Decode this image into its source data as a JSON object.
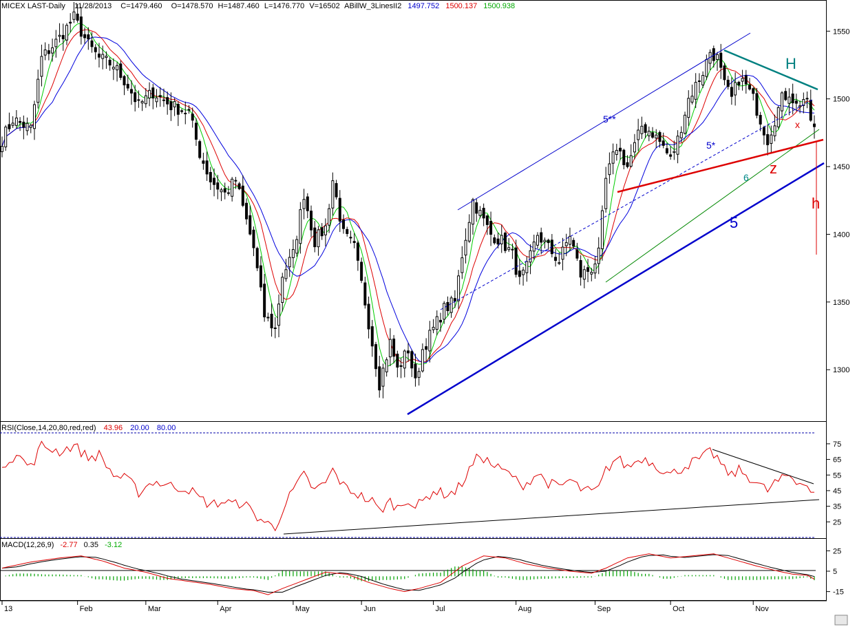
{
  "header": {
    "symbol": "MICEX LAST-Daily",
    "date": "11/28/2013",
    "close": "C=1479.460",
    "open": "O=1478.570",
    "high": "H=1487.460",
    "low": "L=1476.770",
    "volume": "V=16502",
    "indicator": "ABillW_3LinesII2",
    "ind_v1": "1497.752",
    "ind_v2": "1500.137",
    "ind_v3": "1500.938"
  },
  "rsi_header": {
    "label": "RSI(Close,14,20,80,red,red)",
    "value": "43.96",
    "low": "20.00",
    "high": "80.00"
  },
  "macd_header": {
    "label": "MACD(12,26,9)",
    "v1": "-2.77",
    "v2": "0.35",
    "v3": "-3.12"
  },
  "annotations": {
    "h_upper": "H",
    "h_lower": "h",
    "z": "z",
    "x": "x",
    "w5": "5",
    "w5ss": "5**",
    "w5s": "5*",
    "w6": "6"
  },
  "colors": {
    "candles": "#000000",
    "ma_fast": "#00cc00",
    "ma_mid": "#dd0000",
    "ma_slow": "#0000dd",
    "trend_blue": "#0000cc",
    "trend_red": "#dd0000",
    "trend_teal": "#008080",
    "rsi_line": "#dd0000",
    "macd_hist": "#00a000"
  },
  "chart_data": {
    "type": "candlestick",
    "ylim": [
      1262,
      1572
    ],
    "yticks": [
      "1550",
      "1500",
      "1450",
      "1400",
      "1350",
      "1300"
    ],
    "months": [
      {
        "label": "13",
        "day": 0
      },
      {
        "label": "Feb",
        "day": 21
      },
      {
        "label": "Mar",
        "day": 40
      },
      {
        "label": "Apr",
        "day": 60
      },
      {
        "label": "May",
        "day": 81
      },
      {
        "label": "Jun",
        "day": 100
      },
      {
        "label": "Jul",
        "day": 120
      },
      {
        "label": "Aug",
        "day": 143
      },
      {
        "label": "Sep",
        "day": 165
      },
      {
        "label": "Oct",
        "day": 186
      },
      {
        "label": "Nov",
        "day": 209
      }
    ],
    "num_days": 227,
    "close_anchors": [
      [
        0,
        1470
      ],
      [
        3,
        1485
      ],
      [
        8,
        1478
      ],
      [
        11,
        1530
      ],
      [
        16,
        1545
      ],
      [
        20,
        1560
      ],
      [
        24,
        1540
      ],
      [
        27,
        1530
      ],
      [
        31,
        1525
      ],
      [
        35,
        1510
      ],
      [
        38,
        1495
      ],
      [
        42,
        1505
      ],
      [
        47,
        1495
      ],
      [
        52,
        1490
      ],
      [
        55,
        1460
      ],
      [
        58,
        1440
      ],
      [
        62,
        1430
      ],
      [
        65,
        1440
      ],
      [
        67,
        1420
      ],
      [
        70,
        1390
      ],
      [
        73,
        1340
      ],
      [
        76,
        1330
      ],
      [
        78,
        1370
      ],
      [
        81,
        1385
      ],
      [
        84,
        1430
      ],
      [
        87,
        1395
      ],
      [
        90,
        1405
      ],
      [
        92,
        1440
      ],
      [
        95,
        1400
      ],
      [
        98,
        1390
      ],
      [
        101,
        1350
      ],
      [
        103,
        1320
      ],
      [
        105,
        1290
      ],
      [
        108,
        1320
      ],
      [
        110,
        1300
      ],
      [
        113,
        1315
      ],
      [
        115,
        1290
      ],
      [
        117,
        1315
      ],
      [
        120,
        1330
      ],
      [
        123,
        1345
      ],
      [
        126,
        1350
      ],
      [
        128,
        1385
      ],
      [
        131,
        1425
      ],
      [
        133,
        1415
      ],
      [
        136,
        1400
      ],
      [
        139,
        1395
      ],
      [
        142,
        1385
      ],
      [
        144,
        1365
      ],
      [
        146,
        1375
      ],
      [
        149,
        1400
      ],
      [
        152,
        1390
      ],
      [
        155,
        1380
      ],
      [
        158,
        1400
      ],
      [
        161,
        1370
      ],
      [
        164,
        1375
      ],
      [
        166,
        1385
      ],
      [
        168,
        1440
      ],
      [
        171,
        1465
      ],
      [
        174,
        1450
      ],
      [
        178,
        1480
      ],
      [
        181,
        1475
      ],
      [
        184,
        1465
      ],
      [
        186,
        1455
      ],
      [
        188,
        1470
      ],
      [
        191,
        1500
      ],
      [
        195,
        1520
      ],
      [
        197,
        1535
      ],
      [
        199,
        1530
      ],
      [
        201,
        1510
      ],
      [
        203,
        1500
      ],
      [
        205,
        1515
      ],
      [
        207,
        1510
      ],
      [
        209,
        1500
      ],
      [
        211,
        1485
      ],
      [
        213,
        1470
      ],
      [
        215,
        1485
      ],
      [
        217,
        1500
      ],
      [
        219,
        1505
      ],
      [
        221,
        1495
      ],
      [
        223,
        1500
      ],
      [
        224,
        1495
      ],
      [
        225,
        1485
      ],
      [
        226,
        1479.46
      ]
    ],
    "rsi": {
      "ylim": [
        15,
        82
      ],
      "yticks": [
        "75",
        "65",
        "55",
        "45",
        "35",
        "25"
      ],
      "anchors": [
        [
          0,
          62
        ],
        [
          4,
          68
        ],
        [
          8,
          60
        ],
        [
          11,
          74
        ],
        [
          16,
          70
        ],
        [
          20,
          74
        ],
        [
          24,
          66
        ],
        [
          27,
          68
        ],
        [
          31,
          55
        ],
        [
          35,
          52
        ],
        [
          38,
          44
        ],
        [
          42,
          51
        ],
        [
          47,
          48
        ],
        [
          52,
          46
        ],
        [
          55,
          40
        ],
        [
          58,
          36
        ],
        [
          62,
          38
        ],
        [
          65,
          36
        ],
        [
          67,
          38
        ],
        [
          70,
          30
        ],
        [
          73,
          25
        ],
        [
          76,
          21
        ],
        [
          78,
          33
        ],
        [
          81,
          45
        ],
        [
          84,
          55
        ],
        [
          87,
          45
        ],
        [
          90,
          50
        ],
        [
          92,
          58
        ],
        [
          95,
          48
        ],
        [
          98,
          44
        ],
        [
          101,
          40
        ],
        [
          103,
          38
        ],
        [
          105,
          32
        ],
        [
          108,
          38
        ],
        [
          110,
          34
        ],
        [
          113,
          40
        ],
        [
          115,
          34
        ],
        [
          117,
          38
        ],
        [
          120,
          45
        ],
        [
          123,
          43
        ],
        [
          126,
          44
        ],
        [
          128,
          50
        ],
        [
          131,
          62
        ],
        [
          133,
          68
        ],
        [
          136,
          62
        ],
        [
          139,
          58
        ],
        [
          142,
          55
        ],
        [
          144,
          48
        ],
        [
          146,
          50
        ],
        [
          149,
          56
        ],
        [
          152,
          50
        ],
        [
          155,
          47
        ],
        [
          158,
          52
        ],
        [
          161,
          46
        ],
        [
          164,
          44
        ],
        [
          166,
          46
        ],
        [
          168,
          58
        ],
        [
          171,
          66
        ],
        [
          174,
          60
        ],
        [
          178,
          66
        ],
        [
          181,
          63
        ],
        [
          184,
          58
        ],
        [
          186,
          55
        ],
        [
          188,
          58
        ],
        [
          191,
          62
        ],
        [
          195,
          66
        ],
        [
          197,
          70
        ],
        [
          199,
          66
        ],
        [
          201,
          58
        ],
        [
          203,
          55
        ],
        [
          205,
          58
        ],
        [
          207,
          55
        ],
        [
          209,
          52
        ],
        [
          211,
          48
        ],
        [
          213,
          45
        ],
        [
          215,
          50
        ],
        [
          217,
          52
        ],
        [
          219,
          55
        ],
        [
          221,
          50
        ],
        [
          223,
          52
        ],
        [
          224,
          48
        ],
        [
          225,
          45
        ],
        [
          226,
          43.96
        ]
      ]
    },
    "macd": {
      "ylim": [
        -22,
        32
      ],
      "yticks": [
        "25",
        "5",
        "-15"
      ],
      "anchors": [
        [
          0,
          8
        ],
        [
          8,
          14
        ],
        [
          16,
          18
        ],
        [
          22,
          20
        ],
        [
          28,
          15
        ],
        [
          34,
          8
        ],
        [
          40,
          4
        ],
        [
          46,
          -2
        ],
        [
          52,
          -5
        ],
        [
          58,
          -8
        ],
        [
          64,
          -12
        ],
        [
          70,
          -14
        ],
        [
          74,
          -18
        ],
        [
          78,
          -12
        ],
        [
          84,
          -4
        ],
        [
          90,
          4
        ],
        [
          96,
          2
        ],
        [
          102,
          -6
        ],
        [
          108,
          -12
        ],
        [
          112,
          -15
        ],
        [
          116,
          -12
        ],
        [
          122,
          -6
        ],
        [
          128,
          10
        ],
        [
          134,
          20
        ],
        [
          140,
          18
        ],
        [
          146,
          12
        ],
        [
          152,
          8
        ],
        [
          158,
          5
        ],
        [
          164,
          3
        ],
        [
          168,
          8
        ],
        [
          174,
          18
        ],
        [
          180,
          22
        ],
        [
          186,
          18
        ],
        [
          192,
          20
        ],
        [
          198,
          22
        ],
        [
          204,
          16
        ],
        [
          210,
          10
        ],
        [
          216,
          5
        ],
        [
          220,
          2
        ],
        [
          224,
          1
        ],
        [
          226,
          -2.77
        ]
      ],
      "signal_lag": 4
    }
  }
}
